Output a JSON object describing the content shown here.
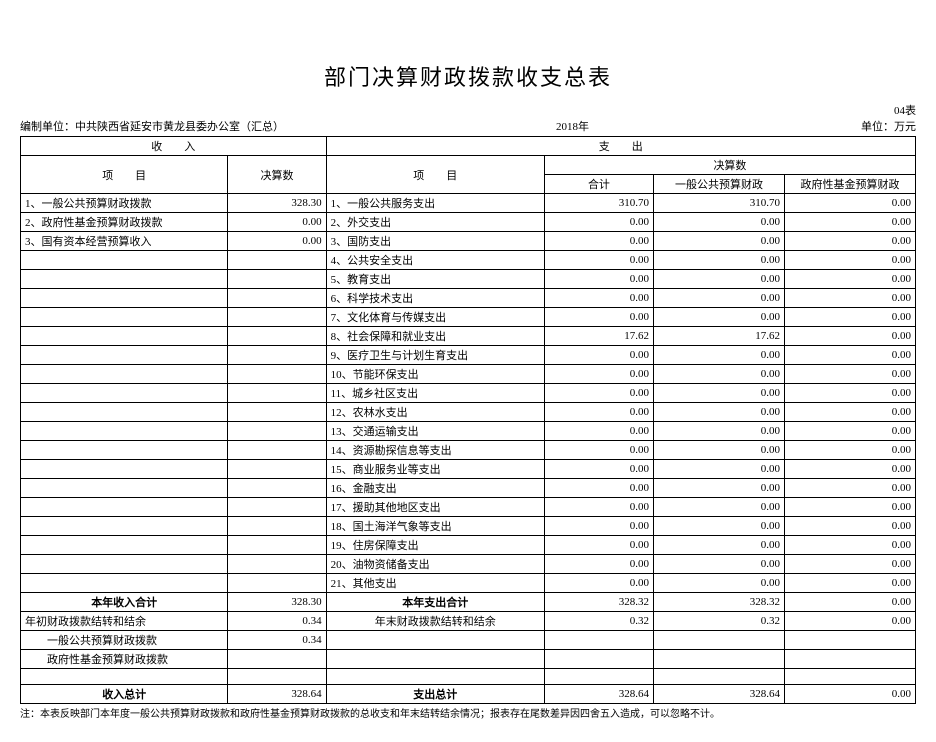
{
  "title": "部门决算财政拨款收支总表",
  "page_num": "04表",
  "org": "编制单位：中共陕西省延安市黄龙县委办公室（汇总）",
  "year": "2018年",
  "unit": "单位：万元",
  "hdr_income": "收　　入",
  "hdr_expense": "支　　出",
  "hdr_item": "项　　目",
  "hdr_jsnum": "决算数",
  "hdr_total": "合计",
  "hdr_gen": "一般公共预算财政",
  "hdr_fund": "政府性基金预算财政",
  "income_rows": [
    {
      "label": "1、一般公共预算财政拨款",
      "num": "328.30"
    },
    {
      "label": "2、政府性基金预算财政拨款",
      "num": "0.00"
    },
    {
      "label": "3、国有资本经营预算收入",
      "num": "0.00"
    },
    {
      "label": "",
      "num": ""
    },
    {
      "label": "",
      "num": ""
    },
    {
      "label": "",
      "num": ""
    },
    {
      "label": "",
      "num": ""
    },
    {
      "label": "",
      "num": ""
    },
    {
      "label": "",
      "num": ""
    },
    {
      "label": "",
      "num": ""
    },
    {
      "label": "",
      "num": ""
    },
    {
      "label": "",
      "num": ""
    },
    {
      "label": "",
      "num": ""
    },
    {
      "label": "",
      "num": ""
    },
    {
      "label": "",
      "num": ""
    },
    {
      "label": "",
      "num": ""
    },
    {
      "label": "",
      "num": ""
    },
    {
      "label": "",
      "num": ""
    },
    {
      "label": "",
      "num": ""
    },
    {
      "label": "",
      "num": ""
    },
    {
      "label": "",
      "num": ""
    }
  ],
  "expense_rows": [
    {
      "label": "1、一般公共服务支出",
      "t": "310.70",
      "g": "310.70",
      "f": "0.00"
    },
    {
      "label": "2、外交支出",
      "t": "0.00",
      "g": "0.00",
      "f": "0.00"
    },
    {
      "label": "3、国防支出",
      "t": "0.00",
      "g": "0.00",
      "f": "0.00"
    },
    {
      "label": "4、公共安全支出",
      "t": "0.00",
      "g": "0.00",
      "f": "0.00"
    },
    {
      "label": "5、教育支出",
      "t": "0.00",
      "g": "0.00",
      "f": "0.00"
    },
    {
      "label": "6、科学技术支出",
      "t": "0.00",
      "g": "0.00",
      "f": "0.00"
    },
    {
      "label": "7、文化体育与传媒支出",
      "t": "0.00",
      "g": "0.00",
      "f": "0.00"
    },
    {
      "label": "8、社会保障和就业支出",
      "t": "17.62",
      "g": "17.62",
      "f": "0.00"
    },
    {
      "label": "9、医疗卫生与计划生育支出",
      "t": "0.00",
      "g": "0.00",
      "f": "0.00"
    },
    {
      "label": "10、节能环保支出",
      "t": "0.00",
      "g": "0.00",
      "f": "0.00"
    },
    {
      "label": "11、城乡社区支出",
      "t": "0.00",
      "g": "0.00",
      "f": "0.00"
    },
    {
      "label": "12、农林水支出",
      "t": "0.00",
      "g": "0.00",
      "f": "0.00"
    },
    {
      "label": "13、交通运输支出",
      "t": "0.00",
      "g": "0.00",
      "f": "0.00"
    },
    {
      "label": "14、资源勘探信息等支出",
      "t": "0.00",
      "g": "0.00",
      "f": "0.00"
    },
    {
      "label": "15、商业服务业等支出",
      "t": "0.00",
      "g": "0.00",
      "f": "0.00"
    },
    {
      "label": "16、金融支出",
      "t": "0.00",
      "g": "0.00",
      "f": "0.00"
    },
    {
      "label": "17、援助其他地区支出",
      "t": "0.00",
      "g": "0.00",
      "f": "0.00"
    },
    {
      "label": "18、国土海洋气象等支出",
      "t": "0.00",
      "g": "0.00",
      "f": "0.00"
    },
    {
      "label": "19、住房保障支出",
      "t": "0.00",
      "g": "0.00",
      "f": "0.00"
    },
    {
      "label": "20、油物资储备支出",
      "t": "0.00",
      "g": "0.00",
      "f": "0.00"
    },
    {
      "label": "21、其他支出",
      "t": "0.00",
      "g": "0.00",
      "f": "0.00"
    }
  ],
  "subtotal_in_label": "本年收入合计",
  "subtotal_in_num": "328.30",
  "subtotal_out_label": "本年支出合计",
  "subtotal_out": {
    "t": "328.32",
    "g": "328.32",
    "f": "0.00"
  },
  "carry_begin_label": "年初财政拨款结转和结余",
  "carry_begin_num": "0.34",
  "carry_end_label": "年末财政拨款结转和结余",
  "carry_end": {
    "t": "0.32",
    "g": "0.32",
    "f": "0.00"
  },
  "sub_gen_label": "　　一般公共预算财政拨款",
  "sub_gen_num": "0.34",
  "sub_fund_label": "　　政府性基金预算财政拨款",
  "sub_fund_num": "",
  "grand_in_label": "收入总计",
  "grand_in_num": "328.64",
  "grand_out_label": "支出总计",
  "grand_out": {
    "t": "328.64",
    "g": "328.64",
    "f": "0.00"
  },
  "footnote": "注：本表反映部门本年度一般公共预算财政拨款和政府性基金预算财政拨款的总收支和年末结转结余情况；报表存在尾数差异因四舍五入造成，可以忽略不计。"
}
